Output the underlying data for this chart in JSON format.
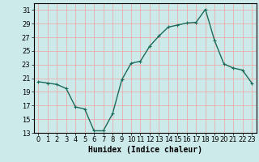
{
  "x": [
    0,
    1,
    2,
    3,
    4,
    5,
    6,
    7,
    8,
    9,
    10,
    11,
    12,
    13,
    14,
    15,
    16,
    17,
    18,
    19,
    20,
    21,
    22,
    23
  ],
  "y": [
    20.5,
    20.3,
    20.1,
    19.5,
    16.8,
    16.5,
    13.3,
    13.3,
    15.8,
    20.8,
    23.2,
    23.5,
    25.7,
    27.2,
    28.5,
    28.8,
    29.1,
    29.2,
    31.1,
    26.5,
    23.1,
    22.5,
    22.2,
    20.3
  ],
  "line_color": "#1a6b5a",
  "marker": "+",
  "marker_color": "#1a6b5a",
  "bg_color": "#cdeaea",
  "grid_color": "#f0a0a0",
  "xlabel": "Humidex (Indice chaleur)",
  "xlabel_fontsize": 7,
  "ylim": [
    13,
    32
  ],
  "xlim": [
    -0.5,
    23.5
  ],
  "yticks": [
    13,
    15,
    17,
    19,
    21,
    23,
    25,
    27,
    29,
    31
  ],
  "xticks": [
    0,
    1,
    2,
    3,
    4,
    5,
    6,
    7,
    8,
    9,
    10,
    11,
    12,
    13,
    14,
    15,
    16,
    17,
    18,
    19,
    20,
    21,
    22,
    23
  ],
  "tick_fontsize": 6,
  "linewidth": 1.0,
  "markersize": 3.5
}
